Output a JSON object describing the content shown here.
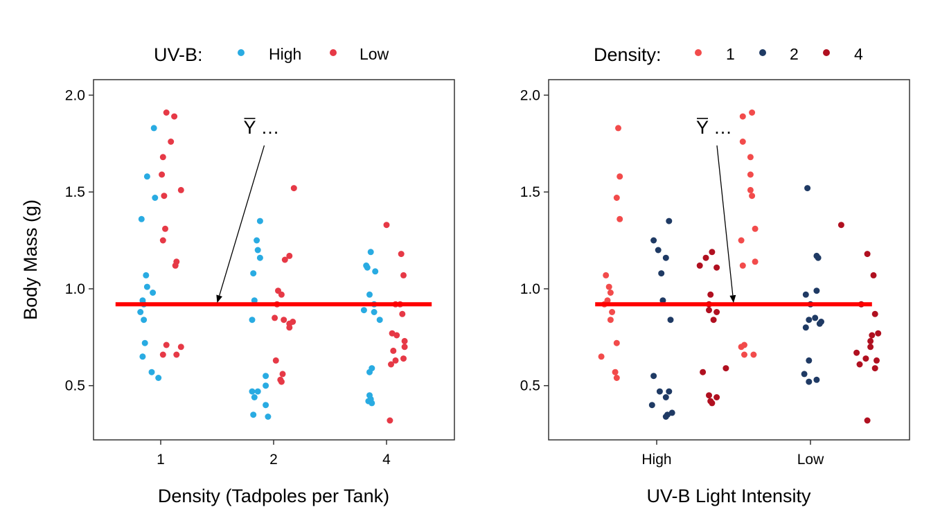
{
  "chart_data": [
    {
      "type": "scatter",
      "title": "",
      "xlabel": "Density (Tadpoles per Tank)",
      "ylabel": "Body Mass (g)",
      "categories": [
        "1",
        "2",
        "4"
      ],
      "ylim": [
        0.22,
        2.08
      ],
      "yticks": [
        "0.5",
        "1.0",
        "1.5",
        "2.0"
      ],
      "grid": false,
      "legend": {
        "title": "UV-B:",
        "placement": "top",
        "entries": [
          "High",
          "Low"
        ]
      },
      "colors": {
        "High": "#29ABE2",
        "Low": "#E63946"
      },
      "mean_line": {
        "value": 0.92,
        "color": "#FF0000"
      },
      "annotation": {
        "bar": "Y",
        "text": " …",
        "target": {
          "category": 1.5,
          "y": 0.92
        }
      },
      "series": [
        {
          "name": "High",
          "points": [
            {
              "x": 0.83,
              "y": 1.36
            },
            {
              "x": 0.88,
              "y": 1.58
            },
            {
              "x": 0.94,
              "y": 1.83
            },
            {
              "x": 0.95,
              "y": 1.47
            },
            {
              "x": 0.87,
              "y": 1.07
            },
            {
              "x": 0.88,
              "y": 1.01
            },
            {
              "x": 0.93,
              "y": 0.98
            },
            {
              "x": 0.84,
              "y": 0.94
            },
            {
              "x": 0.85,
              "y": 0.92
            },
            {
              "x": 0.82,
              "y": 0.88
            },
            {
              "x": 0.85,
              "y": 0.84
            },
            {
              "x": 0.86,
              "y": 0.72
            },
            {
              "x": 0.84,
              "y": 0.65
            },
            {
              "x": 0.92,
              "y": 0.57
            },
            {
              "x": 0.98,
              "y": 0.54
            },
            {
              "x": 1.88,
              "y": 1.35
            },
            {
              "x": 1.85,
              "y": 1.25
            },
            {
              "x": 1.86,
              "y": 1.2
            },
            {
              "x": 1.88,
              "y": 1.16
            },
            {
              "x": 1.82,
              "y": 1.08
            },
            {
              "x": 1.83,
              "y": 0.94
            },
            {
              "x": 1.81,
              "y": 0.84
            },
            {
              "x": 1.93,
              "y": 0.55
            },
            {
              "x": 1.93,
              "y": 0.5
            },
            {
              "x": 1.81,
              "y": 0.47
            },
            {
              "x": 1.86,
              "y": 0.47
            },
            {
              "x": 1.83,
              "y": 0.44
            },
            {
              "x": 1.93,
              "y": 0.4
            },
            {
              "x": 1.82,
              "y": 0.35
            },
            {
              "x": 1.95,
              "y": 0.34
            },
            {
              "x": 2.86,
              "y": 1.19
            },
            {
              "x": 2.82,
              "y": 1.12
            },
            {
              "x": 2.83,
              "y": 1.11
            },
            {
              "x": 2.9,
              "y": 1.09
            },
            {
              "x": 2.85,
              "y": 0.97
            },
            {
              "x": 2.89,
              "y": 0.92
            },
            {
              "x": 2.8,
              "y": 0.89
            },
            {
              "x": 2.89,
              "y": 0.88
            },
            {
              "x": 2.94,
              "y": 0.84
            },
            {
              "x": 2.87,
              "y": 0.59
            },
            {
              "x": 2.85,
              "y": 0.57
            },
            {
              "x": 2.85,
              "y": 0.45
            },
            {
              "x": 2.86,
              "y": 0.43
            },
            {
              "x": 2.84,
              "y": 0.42
            },
            {
              "x": 2.87,
              "y": 0.41
            }
          ]
        },
        {
          "name": "Low",
          "points": [
            {
              "x": 1.05,
              "y": 1.91
            },
            {
              "x": 1.12,
              "y": 1.89
            },
            {
              "x": 1.09,
              "y": 1.76
            },
            {
              "x": 1.02,
              "y": 1.68
            },
            {
              "x": 1.01,
              "y": 1.59
            },
            {
              "x": 1.18,
              "y": 1.51
            },
            {
              "x": 1.03,
              "y": 1.48
            },
            {
              "x": 1.04,
              "y": 1.31
            },
            {
              "x": 1.02,
              "y": 1.25
            },
            {
              "x": 1.14,
              "y": 1.14
            },
            {
              "x": 1.13,
              "y": 1.12
            },
            {
              "x": 1.05,
              "y": 0.71
            },
            {
              "x": 1.18,
              "y": 0.7
            },
            {
              "x": 1.02,
              "y": 0.66
            },
            {
              "x": 1.14,
              "y": 0.66
            },
            {
              "x": 2.18,
              "y": 1.52
            },
            {
              "x": 2.14,
              "y": 1.17
            },
            {
              "x": 2.1,
              "y": 1.15
            },
            {
              "x": 2.04,
              "y": 0.99
            },
            {
              "x": 2.07,
              "y": 0.97
            },
            {
              "x": 2.03,
              "y": 0.92
            },
            {
              "x": 2.01,
              "y": 0.85
            },
            {
              "x": 2.09,
              "y": 0.84
            },
            {
              "x": 2.17,
              "y": 0.83
            },
            {
              "x": 2.14,
              "y": 0.82
            },
            {
              "x": 2.14,
              "y": 0.8
            },
            {
              "x": 2.02,
              "y": 0.63
            },
            {
              "x": 2.08,
              "y": 0.56
            },
            {
              "x": 2.06,
              "y": 0.53
            },
            {
              "x": 2.07,
              "y": 0.52
            },
            {
              "x": 3.0,
              "y": 1.33
            },
            {
              "x": 3.13,
              "y": 1.18
            },
            {
              "x": 3.15,
              "y": 1.07
            },
            {
              "x": 3.08,
              "y": 0.92
            },
            {
              "x": 3.12,
              "y": 0.92
            },
            {
              "x": 3.14,
              "y": 0.87
            },
            {
              "x": 3.05,
              "y": 0.77
            },
            {
              "x": 3.09,
              "y": 0.76
            },
            {
              "x": 3.16,
              "y": 0.73
            },
            {
              "x": 3.16,
              "y": 0.7
            },
            {
              "x": 3.06,
              "y": 0.68
            },
            {
              "x": 3.15,
              "y": 0.64
            },
            {
              "x": 3.08,
              "y": 0.63
            },
            {
              "x": 3.04,
              "y": 0.61
            },
            {
              "x": 3.03,
              "y": 0.32
            }
          ]
        }
      ]
    },
    {
      "type": "scatter",
      "title": "",
      "xlabel": "UV-B Light Intensity",
      "ylabel": "",
      "categories": [
        "High",
        "Low"
      ],
      "ylim": [
        0.22,
        2.08
      ],
      "yticks": [
        "0.5",
        "1.0",
        "1.5",
        "2.0"
      ],
      "grid": false,
      "legend": {
        "title": "Density:",
        "placement": "top",
        "entries": [
          "1",
          "2",
          "4"
        ]
      },
      "colors": {
        "1": "#F24B4B",
        "2": "#1F3A64",
        "4": "#B01020"
      },
      "mean_line": {
        "value": 0.92,
        "color": "#FF0000"
      },
      "annotation": {
        "bar": "Y",
        "text": " …",
        "target": {
          "category": 1.5,
          "y": 0.92
        }
      },
      "series": [
        {
          "name": "1",
          "points": [
            {
              "x": 0.75,
              "y": 1.83
            },
            {
              "x": 0.76,
              "y": 1.58
            },
            {
              "x": 0.74,
              "y": 1.47
            },
            {
              "x": 0.76,
              "y": 1.36
            },
            {
              "x": 0.67,
              "y": 1.07
            },
            {
              "x": 0.69,
              "y": 1.01
            },
            {
              "x": 0.7,
              "y": 0.98
            },
            {
              "x": 0.68,
              "y": 0.94
            },
            {
              "x": 0.66,
              "y": 0.92
            },
            {
              "x": 0.71,
              "y": 0.88
            },
            {
              "x": 0.7,
              "y": 0.84
            },
            {
              "x": 0.74,
              "y": 0.72
            },
            {
              "x": 0.64,
              "y": 0.65
            },
            {
              "x": 0.73,
              "y": 0.57
            },
            {
              "x": 0.74,
              "y": 0.54
            },
            {
              "x": 1.62,
              "y": 1.91
            },
            {
              "x": 1.56,
              "y": 1.89
            },
            {
              "x": 1.56,
              "y": 1.76
            },
            {
              "x": 1.61,
              "y": 1.68
            },
            {
              "x": 1.61,
              "y": 1.59
            },
            {
              "x": 1.61,
              "y": 1.51
            },
            {
              "x": 1.62,
              "y": 1.48
            },
            {
              "x": 1.64,
              "y": 1.31
            },
            {
              "x": 1.55,
              "y": 1.25
            },
            {
              "x": 1.64,
              "y": 1.14
            },
            {
              "x": 1.56,
              "y": 1.12
            },
            {
              "x": 1.57,
              "y": 0.71
            },
            {
              "x": 1.55,
              "y": 0.7
            },
            {
              "x": 1.57,
              "y": 0.66
            },
            {
              "x": 1.63,
              "y": 0.66
            }
          ]
        },
        {
          "name": "2",
          "points": [
            {
              "x": 1.08,
              "y": 1.35
            },
            {
              "x": 0.98,
              "y": 1.25
            },
            {
              "x": 1.01,
              "y": 1.2
            },
            {
              "x": 1.06,
              "y": 1.16
            },
            {
              "x": 1.03,
              "y": 1.08
            },
            {
              "x": 1.04,
              "y": 0.94
            },
            {
              "x": 1.09,
              "y": 0.84
            },
            {
              "x": 0.98,
              "y": 0.55
            },
            {
              "x": 1.02,
              "y": 0.47
            },
            {
              "x": 1.08,
              "y": 0.47
            },
            {
              "x": 1.06,
              "y": 0.44
            },
            {
              "x": 0.97,
              "y": 0.4
            },
            {
              "x": 1.1,
              "y": 0.36
            },
            {
              "x": 1.07,
              "y": 0.35
            },
            {
              "x": 1.06,
              "y": 0.34
            },
            {
              "x": 1.98,
              "y": 1.52
            },
            {
              "x": 2.04,
              "y": 1.17
            },
            {
              "x": 2.05,
              "y": 1.16
            },
            {
              "x": 1.97,
              "y": 0.97
            },
            {
              "x": 2.04,
              "y": 0.99
            },
            {
              "x": 2.0,
              "y": 0.92
            },
            {
              "x": 2.03,
              "y": 0.85
            },
            {
              "x": 1.99,
              "y": 0.84
            },
            {
              "x": 2.07,
              "y": 0.83
            },
            {
              "x": 2.06,
              "y": 0.82
            },
            {
              "x": 1.97,
              "y": 0.8
            },
            {
              "x": 1.99,
              "y": 0.63
            },
            {
              "x": 1.96,
              "y": 0.56
            },
            {
              "x": 2.04,
              "y": 0.53
            },
            {
              "x": 1.99,
              "y": 0.52
            }
          ]
        },
        {
          "name": "4",
          "points": [
            {
              "x": 1.36,
              "y": 1.19
            },
            {
              "x": 1.32,
              "y": 1.16
            },
            {
              "x": 1.28,
              "y": 1.12
            },
            {
              "x": 1.39,
              "y": 1.11
            },
            {
              "x": 1.35,
              "y": 0.97
            },
            {
              "x": 1.34,
              "y": 0.92
            },
            {
              "x": 1.34,
              "y": 0.89
            },
            {
              "x": 1.39,
              "y": 0.88
            },
            {
              "x": 1.37,
              "y": 0.84
            },
            {
              "x": 1.45,
              "y": 0.59
            },
            {
              "x": 1.3,
              "y": 0.57
            },
            {
              "x": 1.34,
              "y": 0.45
            },
            {
              "x": 1.39,
              "y": 0.44
            },
            {
              "x": 1.35,
              "y": 0.42
            },
            {
              "x": 1.36,
              "y": 0.41
            },
            {
              "x": 2.2,
              "y": 1.33
            },
            {
              "x": 2.37,
              "y": 1.18
            },
            {
              "x": 2.41,
              "y": 1.07
            },
            {
              "x": 2.33,
              "y": 0.92
            },
            {
              "x": 2.42,
              "y": 0.87
            },
            {
              "x": 2.44,
              "y": 0.77
            },
            {
              "x": 2.4,
              "y": 0.76
            },
            {
              "x": 2.39,
              "y": 0.73
            },
            {
              "x": 2.39,
              "y": 0.7
            },
            {
              "x": 2.3,
              "y": 0.67
            },
            {
              "x": 2.36,
              "y": 0.64
            },
            {
              "x": 2.43,
              "y": 0.63
            },
            {
              "x": 2.32,
              "y": 0.61
            },
            {
              "x": 2.42,
              "y": 0.59
            },
            {
              "x": 2.37,
              "y": 0.32
            }
          ]
        }
      ]
    }
  ]
}
